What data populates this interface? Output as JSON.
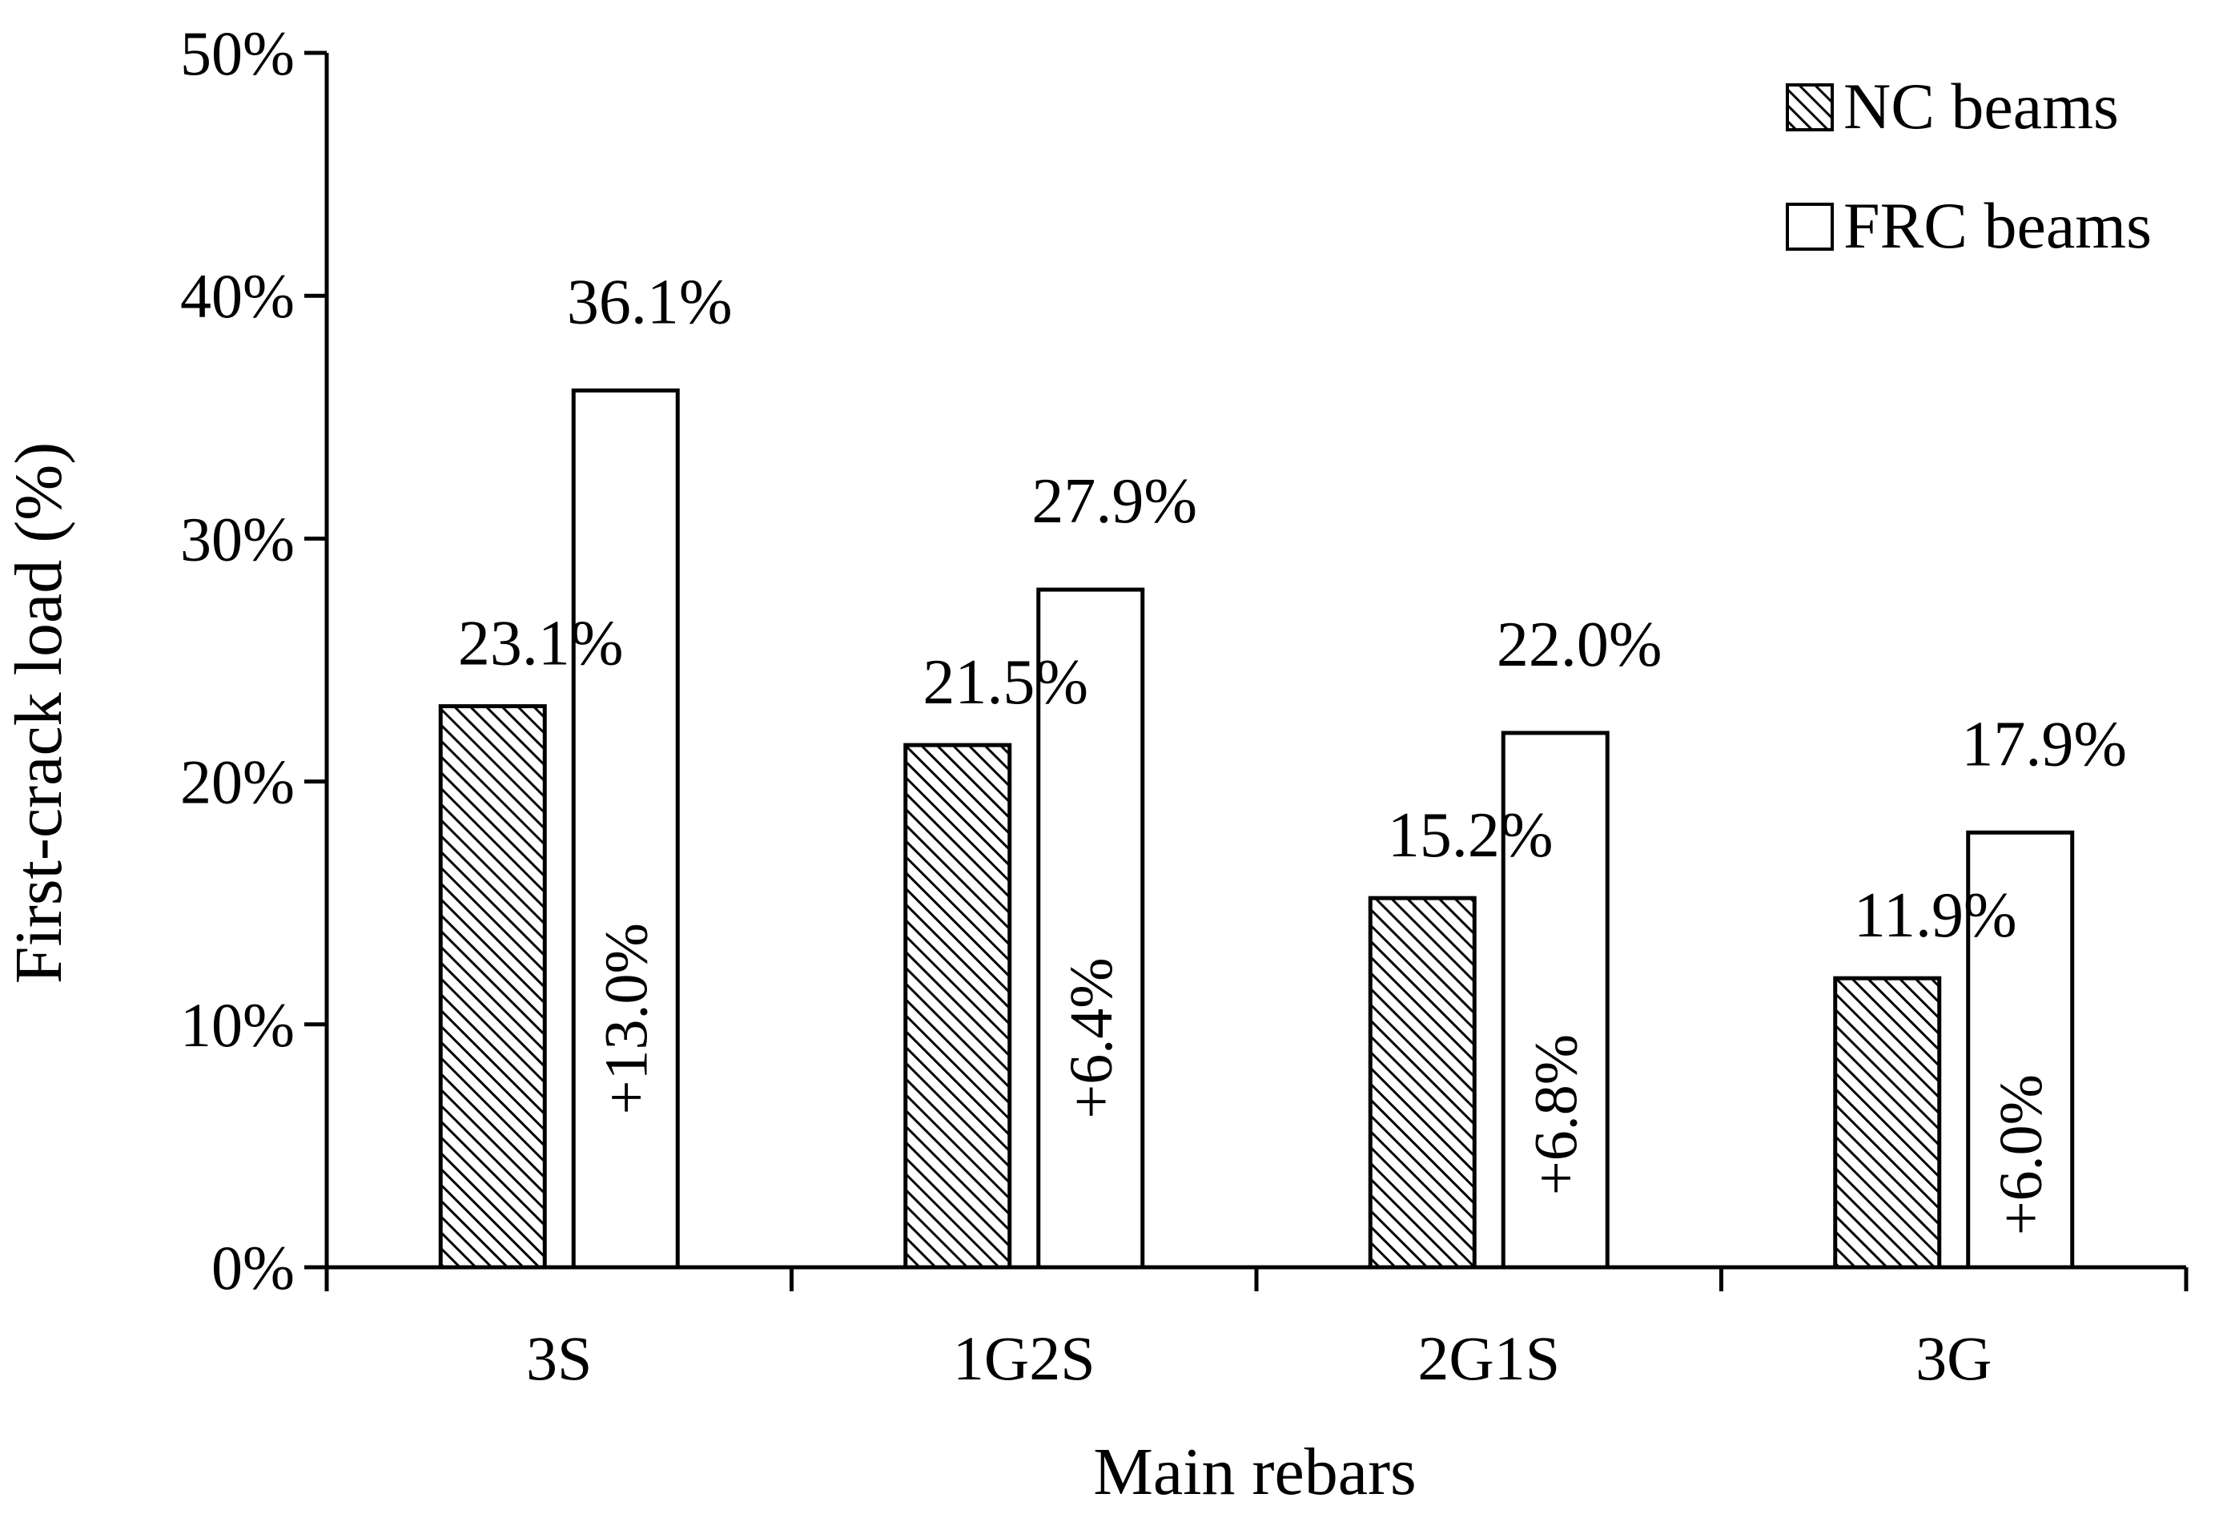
{
  "chart_data": {
    "type": "bar",
    "title": "",
    "xlabel": "Main rebars",
    "ylabel": "First-crack load (%)",
    "ylim": [
      0,
      50
    ],
    "y_ticks": [
      "0%",
      "10%",
      "20%",
      "30%",
      "40%",
      "50%"
    ],
    "y_tick_values": [
      0,
      10,
      20,
      30,
      40,
      50
    ],
    "categories": [
      "3S",
      "1G2S",
      "2G1S",
      "3G"
    ],
    "series": [
      {
        "name": "NC beams",
        "values": [
          23.1,
          21.5,
          15.2,
          11.9
        ],
        "labels": [
          "23.1%",
          "21.5%",
          "15.2%",
          "11.9%"
        ],
        "fill": "hatched"
      },
      {
        "name": "FRC beams",
        "values": [
          36.1,
          27.9,
          22.0,
          17.9
        ],
        "labels": [
          "36.1%",
          "27.9%",
          "22.0%",
          "17.9%"
        ],
        "fill": "white"
      }
    ],
    "increase_labels": [
      "+13.0%",
      "+6.4%",
      "+6.8%",
      "+6.0%"
    ],
    "legend_position": "top-right",
    "grid": false,
    "colors": {
      "stroke": "#000000",
      "background": "#ffffff",
      "hatch": "#000000"
    }
  }
}
